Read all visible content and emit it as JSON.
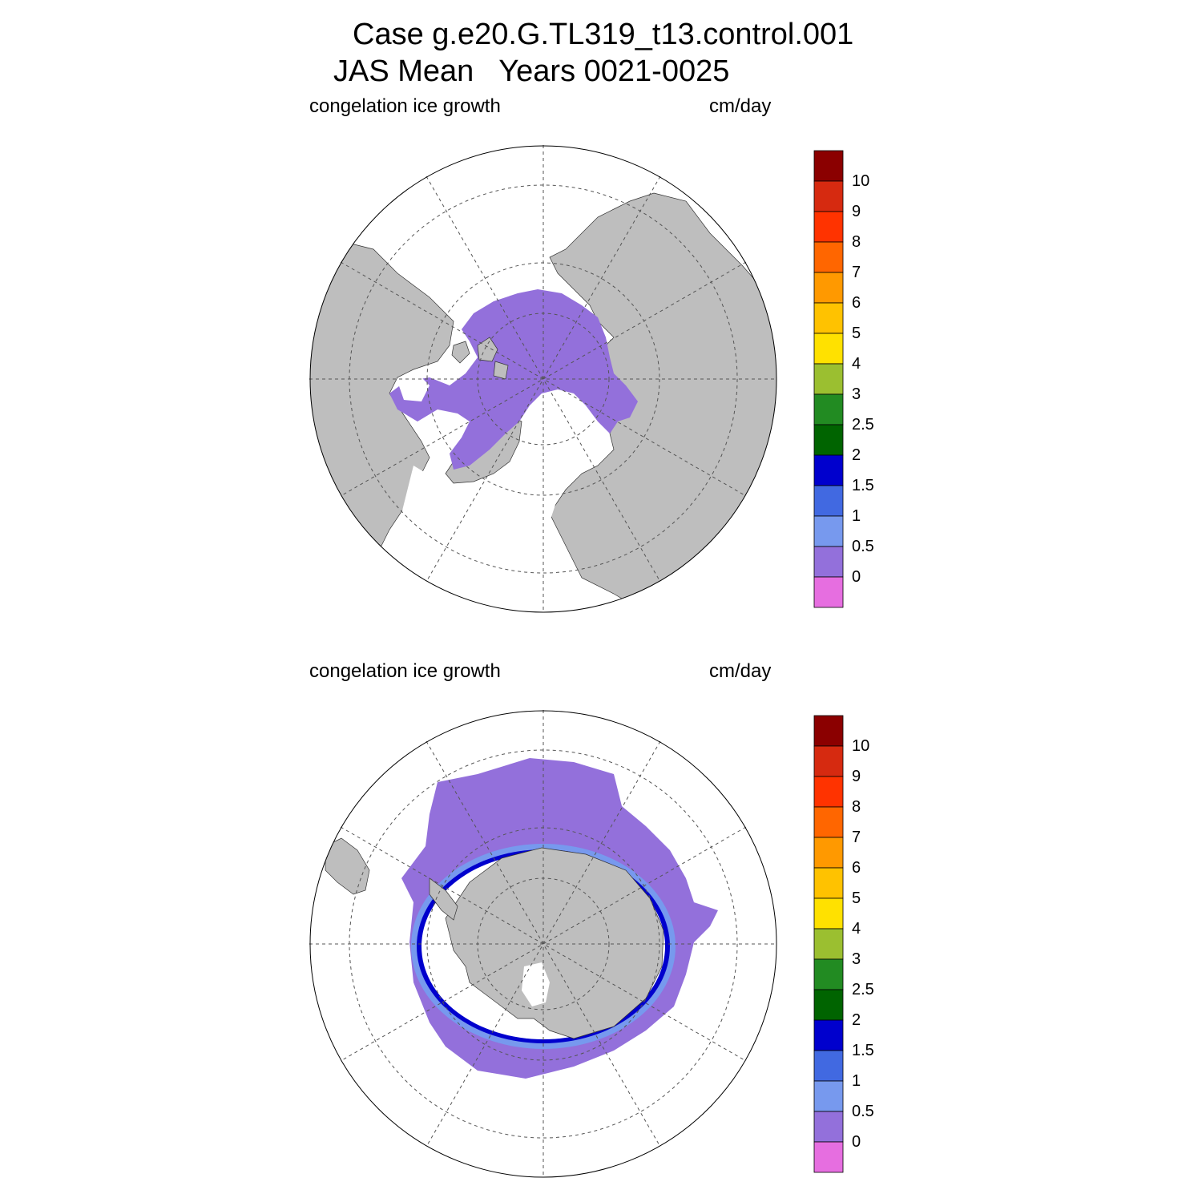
{
  "title": {
    "line1": "Case g.e20.G.TL319_t13.control.001",
    "line2": "JAS Mean   Years 0021-0025"
  },
  "panels": [
    {
      "id": "north",
      "variable_label": "congelation ice growth",
      "units_label": "cm/day",
      "hemisphere": "north-polar-stereographic"
    },
    {
      "id": "south",
      "variable_label": "congelation ice growth",
      "units_label": "cm/day",
      "hemisphere": "south-polar-stereographic"
    }
  ],
  "colorbar": {
    "labels": [
      "10",
      "9",
      "8",
      "7",
      "6",
      "5",
      "4",
      "3",
      "2.5",
      "2",
      "1.5",
      "1",
      "0.5",
      "0"
    ],
    "colors": [
      "#8b0000",
      "#d62a10",
      "#ff3300",
      "#ff6600",
      "#ff9900",
      "#ffc200",
      "#ffe100",
      "#9bbf30",
      "#228b22",
      "#006400",
      "#0000cd",
      "#4169e1",
      "#7799ee",
      "#9370db",
      "#e66ee0"
    ]
  },
  "map_colors": {
    "land": "#bebebe",
    "ice_low": "#9370db",
    "ice_mid": "#7799ee",
    "ice_high": "#4169e1",
    "ice_max": "#0000cd",
    "grid": "#555555"
  }
}
